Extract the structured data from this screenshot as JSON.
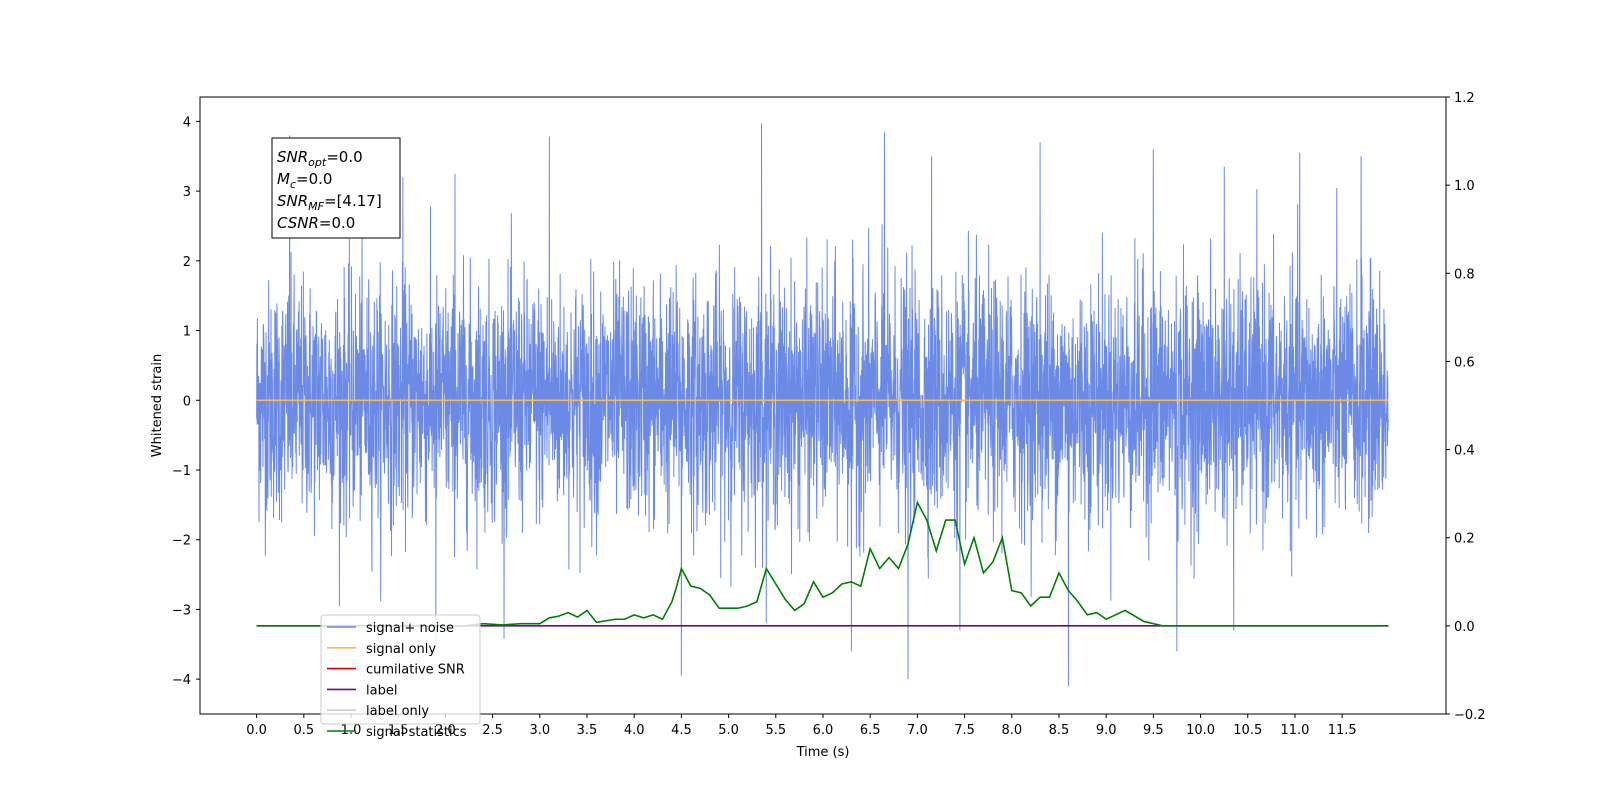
{
  "chart_data": {
    "type": "line",
    "xlabel": "Time (s)",
    "ylabel": "Whitened strain",
    "xlim": [
      -0.6,
      12.6
    ],
    "ylim": [
      -4.5,
      4.35
    ],
    "y2lim": [
      -0.2,
      1.2
    ],
    "x_ticks": [
      "0.0",
      "0.5",
      "1.0",
      "1.5",
      "2.0",
      "2.5",
      "3.0",
      "3.5",
      "4.0",
      "4.5",
      "5.0",
      "5.5",
      "6.0",
      "6.5",
      "7.0",
      "7.5",
      "8.0",
      "8.5",
      "9.0",
      "9.5",
      "10.0",
      "10.5",
      "11.0",
      "11.5"
    ],
    "y_ticks": [
      "4",
      "3",
      "2",
      "1",
      "0",
      "−1",
      "−2",
      "−3",
      "−4"
    ],
    "y2_ticks": [
      "1.2",
      "1.0",
      "0.8",
      "0.6",
      "0.4",
      "0.2",
      "0.0",
      "−0.2"
    ],
    "grid": false,
    "annotation": {
      "lines": [
        {
          "base": "SNR",
          "sub": "opt",
          "rest": "=0.0"
        },
        {
          "base": "M",
          "sub": "c",
          "rest": "=0.0"
        },
        {
          "base": "SNR",
          "sub": "MF",
          "rest": "=[4.17]"
        },
        {
          "base": "CSNR",
          "sub": "",
          "rest": "=0.0"
        }
      ]
    },
    "legend": {
      "placement": "lower-left",
      "entries": [
        {
          "label": "signal+ noise",
          "color": "#6b8ae6"
        },
        {
          "label": "signal only",
          "color": "#ffb84d"
        },
        {
          "label": "cumilative SNR",
          "color": "#e00000"
        },
        {
          "label": "label",
          "color": "#6a0d83"
        },
        {
          "label": "label only",
          "color": "#cccccc"
        },
        {
          "label": "signal statistics",
          "color": "#007f00"
        }
      ]
    },
    "series": [
      {
        "name": "signal+ noise",
        "color": "#6b8ae6",
        "axis": "left",
        "x_range": [
          0.0,
          11.99
        ],
        "y_envelope_typical": [
          -1.7,
          1.7
        ],
        "peaks": [
          {
            "x": 0.35,
            "y": 3.8
          },
          {
            "x": 3.1,
            "y": 3.78
          },
          {
            "x": 5.35,
            "y": 3.97
          },
          {
            "x": 6.65,
            "y": 3.85
          },
          {
            "x": 1.55,
            "y": 3.2
          },
          {
            "x": 2.1,
            "y": 3.25
          },
          {
            "x": 7.15,
            "y": 3.5
          },
          {
            "x": 8.3,
            "y": 3.7
          },
          {
            "x": 9.5,
            "y": 3.6
          },
          {
            "x": 10.25,
            "y": 3.35
          },
          {
            "x": 11.05,
            "y": 3.55
          },
          {
            "x": 11.7,
            "y": 3.5
          },
          {
            "x": 4.5,
            "y": -3.95
          },
          {
            "x": 6.9,
            "y": -4.0
          },
          {
            "x": 8.6,
            "y": -4.1
          },
          {
            "x": 6.3,
            "y": -3.6
          },
          {
            "x": 9.75,
            "y": -3.6
          },
          {
            "x": 1.9,
            "y": -3.5
          },
          {
            "x": 7.45,
            "y": -3.3
          },
          {
            "x": 10.35,
            "y": -3.3
          }
        ]
      },
      {
        "name": "signal only",
        "color": "#ffb84d",
        "axis": "left",
        "x": [
          0.0,
          11.99
        ],
        "y": [
          0.0,
          0.0
        ]
      },
      {
        "name": "label",
        "color": "#6a0d83",
        "axis": "right",
        "x": [
          0.0,
          11.99
        ],
        "y": [
          0.0,
          0.0
        ]
      },
      {
        "name": "signal statistics",
        "color": "#007f00",
        "axis": "right",
        "x": [
          0.0,
          0.5,
          1.0,
          1.5,
          2.0,
          2.2,
          2.4,
          2.6,
          2.8,
          3.0,
          3.1,
          3.2,
          3.3,
          3.4,
          3.5,
          3.6,
          3.8,
          3.9,
          4.0,
          4.1,
          4.2,
          4.3,
          4.4,
          4.45,
          4.5,
          4.6,
          4.7,
          4.8,
          4.9,
          5.0,
          5.1,
          5.2,
          5.3,
          5.4,
          5.5,
          5.6,
          5.7,
          5.8,
          5.9,
          6.0,
          6.1,
          6.2,
          6.3,
          6.4,
          6.5,
          6.6,
          6.7,
          6.8,
          6.9,
          7.0,
          7.1,
          7.2,
          7.3,
          7.4,
          7.5,
          7.6,
          7.7,
          7.8,
          7.9,
          8.0,
          8.1,
          8.2,
          8.3,
          8.4,
          8.5,
          8.6,
          8.7,
          8.8,
          8.9,
          9.0,
          9.2,
          9.4,
          9.6,
          9.8,
          10.0,
          11.0,
          11.99
        ],
        "y": [
          0.0,
          0.0,
          0.0,
          0.0,
          0.0,
          0.0,
          0.005,
          0.002,
          0.005,
          0.005,
          0.018,
          0.022,
          0.03,
          0.02,
          0.035,
          0.008,
          0.015,
          0.015,
          0.025,
          0.018,
          0.025,
          0.015,
          0.055,
          0.09,
          0.13,
          0.09,
          0.085,
          0.07,
          0.04,
          0.04,
          0.04,
          0.045,
          0.055,
          0.13,
          0.095,
          0.06,
          0.035,
          0.05,
          0.1,
          0.065,
          0.075,
          0.095,
          0.1,
          0.09,
          0.175,
          0.13,
          0.155,
          0.13,
          0.185,
          0.28,
          0.24,
          0.17,
          0.24,
          0.24,
          0.14,
          0.2,
          0.12,
          0.145,
          0.2,
          0.08,
          0.075,
          0.045,
          0.065,
          0.065,
          0.12,
          0.08,
          0.055,
          0.025,
          0.03,
          0.015,
          0.035,
          0.01,
          0.0,
          0.0,
          0.0,
          0.0,
          0.0
        ]
      }
    ]
  }
}
